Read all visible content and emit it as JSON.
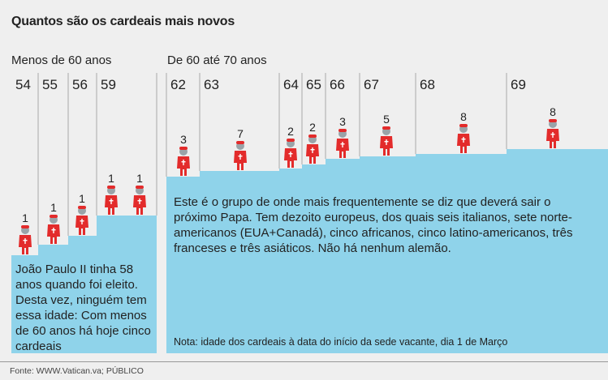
{
  "title": "Quantos são os cardeais mais novos",
  "groups": [
    "Menos de 60 anos",
    "De 60 até 70 anos"
  ],
  "chart_data": {
    "type": "bar",
    "title": "Quantos são os cardeais mais novos",
    "categories": [
      "54",
      "55",
      "56",
      "59",
      "62",
      "63",
      "64",
      "65",
      "66",
      "67",
      "68",
      "69"
    ],
    "values": [
      1,
      1,
      1,
      2,
      3,
      7,
      2,
      2,
      3,
      5,
      8,
      8
    ],
    "icon_counts": [
      1,
      1,
      1,
      2,
      1,
      1,
      1,
      1,
      1,
      1,
      1,
      1
    ],
    "group_of_category": [
      0,
      0,
      0,
      0,
      1,
      1,
      1,
      1,
      1,
      1,
      1,
      1
    ],
    "xlabel": "",
    "ylabel": ""
  },
  "notes": {
    "young": "João Paulo II tinha 58 anos quando foi eleito. Desta vez, ninguém tem essa idade: Com menos de 60 anos há hoje cinco cardeais",
    "old": "Este é o grupo de onde mais frequentemente se diz que deverá sair o próximo Papa. Tem dezoito europeus, dos quais seis italianos, sete norte-americanos (EUA+Canadá), cinco africanos, cinco latino-americanos, três franceses e três asiáticos. Não há nenhum alemão.",
    "footnote": "Nota: idade dos cardeais à data do início da sede vacante, dia 1 de Março"
  },
  "source": "Fonte: WWW.Vatican.va; PÚBLICO",
  "colors": {
    "stairs": "#8fd3ea",
    "cardinal": "#e32b2b",
    "cardinal_head": "#9aa3a8",
    "divider": "#aaaaaa"
  }
}
